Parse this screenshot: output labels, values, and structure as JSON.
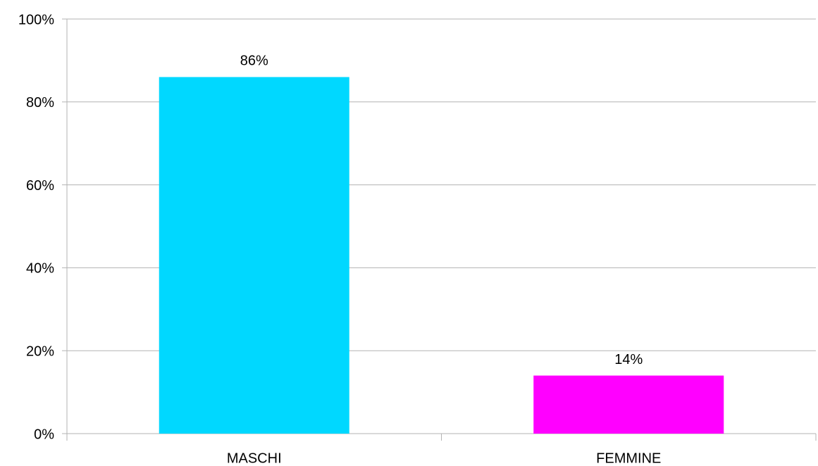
{
  "chart_data": {
    "type": "bar",
    "categories": [
      "MASCHI",
      "FEMMINE"
    ],
    "values": [
      86,
      14
    ],
    "value_labels": [
      "86%",
      "14%"
    ],
    "colors": [
      "#00d8ff",
      "#ff00ff"
    ],
    "ylim": [
      0,
      100
    ],
    "yticks": [
      {
        "value": 0,
        "label": "0%"
      },
      {
        "value": 20,
        "label": "20%"
      },
      {
        "value": 40,
        "label": "40%"
      },
      {
        "value": 60,
        "label": "60%"
      },
      {
        "value": 80,
        "label": "80%"
      },
      {
        "value": 100,
        "label": "100%"
      }
    ],
    "grid": true
  }
}
